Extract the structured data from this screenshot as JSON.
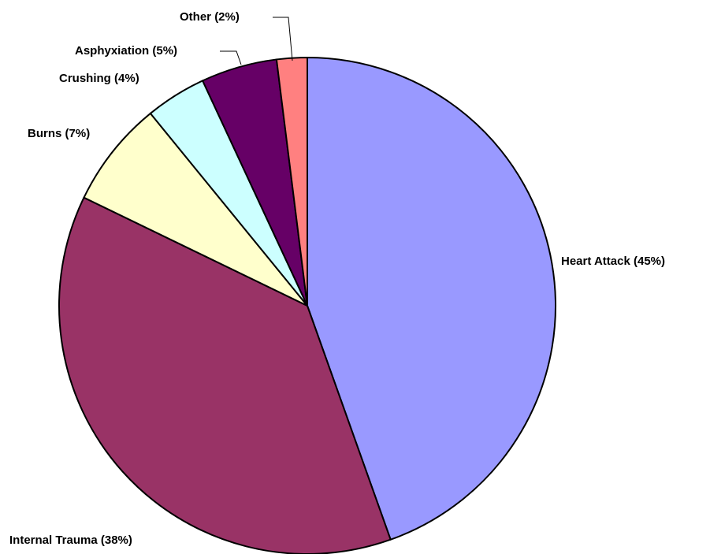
{
  "chart_data": {
    "type": "pie",
    "categories": [
      "Heart Attack",
      "Internal Trauma",
      "Burns",
      "Crushing",
      "Asphyxiation",
      "Other"
    ],
    "values": [
      45,
      38,
      7,
      4,
      5,
      2
    ],
    "value_labels": [
      "(45%)",
      "(38%)",
      "(7%)",
      "(4%)",
      "(5%)",
      "(2%)"
    ],
    "colors": [
      "#9999ff",
      "#993366",
      "#ffffcc",
      "#ccffff",
      "#660066",
      "#ff8080"
    ]
  }
}
